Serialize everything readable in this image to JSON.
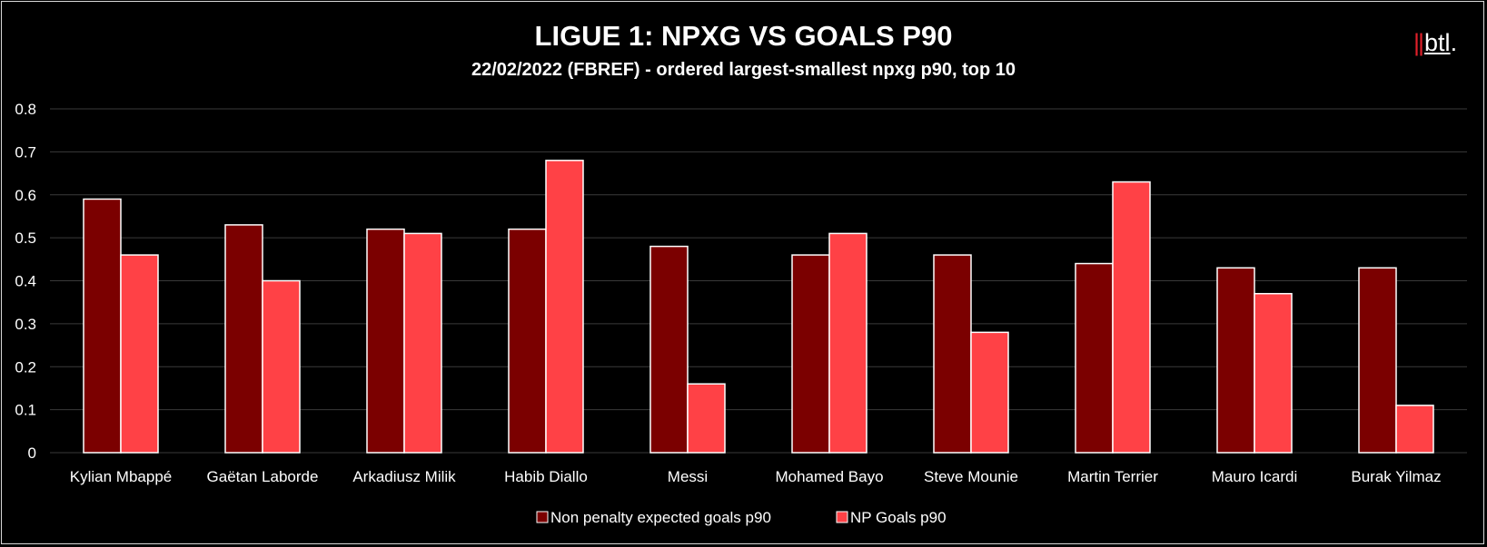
{
  "header": {
    "title": "LIGUE 1: NPXG VS GOALS P90",
    "subtitle": "22/02/2022 (FBREF) - ordered largest-smallest npxg p90, top 10",
    "logo_bars": "||",
    "logo_text": "btl",
    "logo_dot": "."
  },
  "colors": {
    "series1": "#7b0000",
    "series2": "#ff4146",
    "grid": "#3a3a3a",
    "bar_border": "#ffffff"
  },
  "chart_data": {
    "type": "bar",
    "title": "LIGUE 1: NPXG VS GOALS P90",
    "subtitle": "22/02/2022 (FBREF) - ordered largest-smallest npxg p90, top 10",
    "categories": [
      "Kylian Mbappé",
      "Gaëtan Laborde",
      "Arkadiusz Milik",
      "Habib Diallo",
      "Messi",
      "Mohamed Bayo",
      "Steve Mounie",
      "Martin Terrier",
      "Mauro Icardi",
      "Burak Yilmaz"
    ],
    "series": [
      {
        "name": "Non penalty expected goals p90",
        "values": [
          0.59,
          0.53,
          0.52,
          0.52,
          0.48,
          0.46,
          0.46,
          0.44,
          0.43,
          0.43
        ]
      },
      {
        "name": "NP Goals p90",
        "values": [
          0.46,
          0.4,
          0.51,
          0.68,
          0.16,
          0.51,
          0.28,
          0.63,
          0.37,
          0.11
        ]
      }
    ],
    "ylim": [
      0,
      0.8
    ],
    "yticks": [
      "0",
      "0.1",
      "0.2",
      "0.3",
      "0.4",
      "0.5",
      "0.6",
      "0.7",
      "0.8"
    ],
    "grid": true,
    "legend": "bottom-center",
    "xlabel": "",
    "ylabel": ""
  }
}
